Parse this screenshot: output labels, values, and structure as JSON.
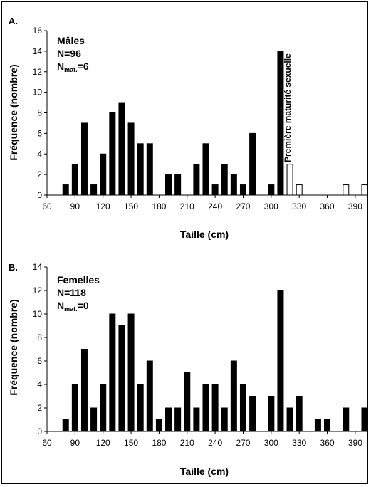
{
  "chart_data": [
    {
      "type": "bar",
      "panel_label": "A.",
      "xlabel": "Taille (cm)",
      "ylabel": "Fréquence (nombre)",
      "ylim": [
        0,
        16
      ],
      "yticks": [
        0,
        2,
        4,
        6,
        8,
        10,
        12,
        14,
        16
      ],
      "xlim": [
        60,
        400
      ],
      "xticks": [
        60,
        90,
        120,
        150,
        180,
        210,
        240,
        270,
        300,
        330,
        360,
        390
      ],
      "legend": {
        "line1": "Mâles",
        "line2": "N=96",
        "nmat_prefix": "N",
        "nmat_sub": "mat.",
        "nmat_value": "=6"
      },
      "annotation": "Première maturité sexuelle",
      "series": [
        {
          "style": "filled",
          "color": "#000000",
          "x": [
            80,
            90,
            100,
            110,
            120,
            130,
            140,
            150,
            160,
            170,
            190,
            200,
            220,
            230,
            240,
            250,
            260,
            270,
            280,
            300,
            310
          ],
          "values": [
            1,
            3,
            7,
            1,
            4,
            8,
            9,
            7,
            5,
            5,
            2,
            2,
            3,
            5,
            1,
            3,
            2,
            1,
            6,
            1,
            14
          ]
        },
        {
          "style": "open",
          "color": "#ffffff",
          "x": [
            320,
            330,
            380,
            400
          ],
          "values": [
            3,
            1,
            1,
            1
          ]
        }
      ]
    },
    {
      "type": "bar",
      "panel_label": "B.",
      "xlabel": "Taille (cm)",
      "ylabel": "Fréquence (nombre)",
      "ylim": [
        0,
        14
      ],
      "yticks": [
        0,
        2,
        4,
        6,
        8,
        10,
        12,
        14
      ],
      "xlim": [
        60,
        400
      ],
      "xticks": [
        60,
        90,
        120,
        150,
        180,
        210,
        240,
        270,
        300,
        330,
        360,
        390
      ],
      "legend": {
        "line1": "Femelles",
        "line2": "N=118",
        "nmat_prefix": "N",
        "nmat_sub": "mat.",
        "nmat_value": "=0"
      },
      "series": [
        {
          "style": "filled",
          "color": "#000000",
          "x": [
            80,
            90,
            100,
            110,
            120,
            130,
            140,
            150,
            160,
            170,
            180,
            190,
            200,
            210,
            220,
            230,
            240,
            250,
            260,
            270,
            280,
            300,
            310,
            320,
            330,
            350,
            360,
            380,
            400
          ],
          "values": [
            1,
            4,
            7,
            2,
            4,
            10,
            9,
            10,
            4,
            6,
            1,
            2,
            2,
            5,
            2,
            4,
            4,
            2,
            6,
            4,
            3,
            3,
            12,
            2,
            3,
            1,
            1,
            2,
            2
          ]
        }
      ]
    }
  ]
}
